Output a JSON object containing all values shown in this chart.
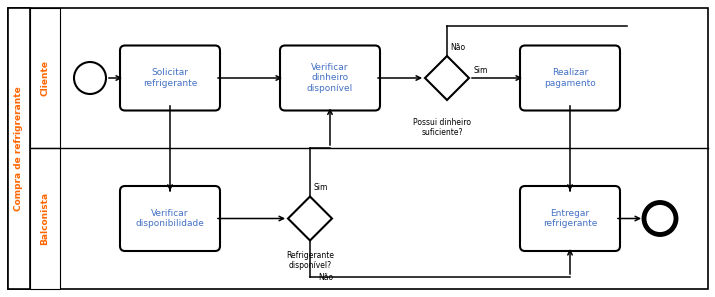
{
  "bg_color": "#ffffff",
  "pool_title": "Compra de refrigrerante",
  "lane1_title": "Cliente",
  "lane2_title": "Balconista",
  "fig_width": 7.15,
  "fig_height": 2.97,
  "dpi": 100,
  "label_color": "#ff6600",
  "task_color": "#4472c4",
  "pool_title_color": "#ff6600",
  "lane_title_color": "#ff6600"
}
